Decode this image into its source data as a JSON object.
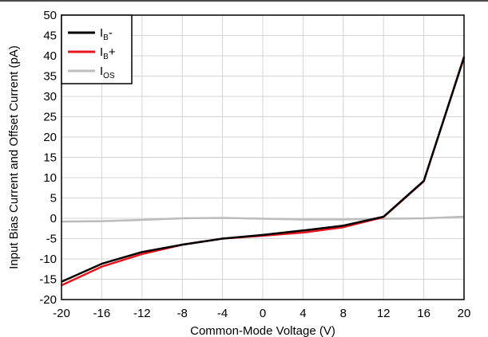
{
  "chart_data": {
    "type": "line",
    "xlabel": "Common-Mode Voltage (V)",
    "ylabel": "Input Bias Current and Offset Current (pA)",
    "xlim": [
      -20,
      20
    ],
    "ylim": [
      -20,
      50
    ],
    "xticks": [
      -20,
      -16,
      -12,
      -8,
      -4,
      0,
      4,
      8,
      12,
      16,
      20
    ],
    "yticks": [
      -20,
      -15,
      -10,
      -5,
      0,
      5,
      10,
      15,
      20,
      25,
      30,
      35,
      40,
      45,
      50
    ],
    "grid": true,
    "legend_position": "top-left",
    "series": [
      {
        "name_main": "I",
        "name_sub": "B",
        "name_suffix": "-",
        "color": "#000000",
        "x": [
          -20,
          -16,
          -12,
          -8,
          -4,
          0,
          4,
          8,
          12,
          16,
          20
        ],
        "y": [
          -15.6,
          -11.2,
          -8.3,
          -6.5,
          -5.0,
          -4.1,
          -3.0,
          -1.8,
          0.4,
          9.2,
          39.6
        ]
      },
      {
        "name_main": "I",
        "name_sub": "B",
        "name_suffix": "+",
        "color": "#e8141c",
        "x": [
          -20,
          -16,
          -12,
          -8,
          -4,
          0,
          4,
          8,
          12,
          16,
          20
        ],
        "y": [
          -16.5,
          -11.9,
          -8.8,
          -6.5,
          -5.0,
          -4.3,
          -3.5,
          -2.2,
          0.3,
          9.1,
          39.8
        ]
      },
      {
        "name_main": "I",
        "name_sub": "OS",
        "name_suffix": "",
        "color": "#bcbcbc",
        "x": [
          -20,
          -16,
          -12,
          -8,
          -4,
          0,
          4,
          8,
          12,
          16,
          20
        ],
        "y": [
          -0.8,
          -0.7,
          -0.4,
          0.0,
          0.1,
          -0.1,
          -0.3,
          -0.3,
          -0.1,
          0.0,
          0.4
        ]
      }
    ]
  }
}
